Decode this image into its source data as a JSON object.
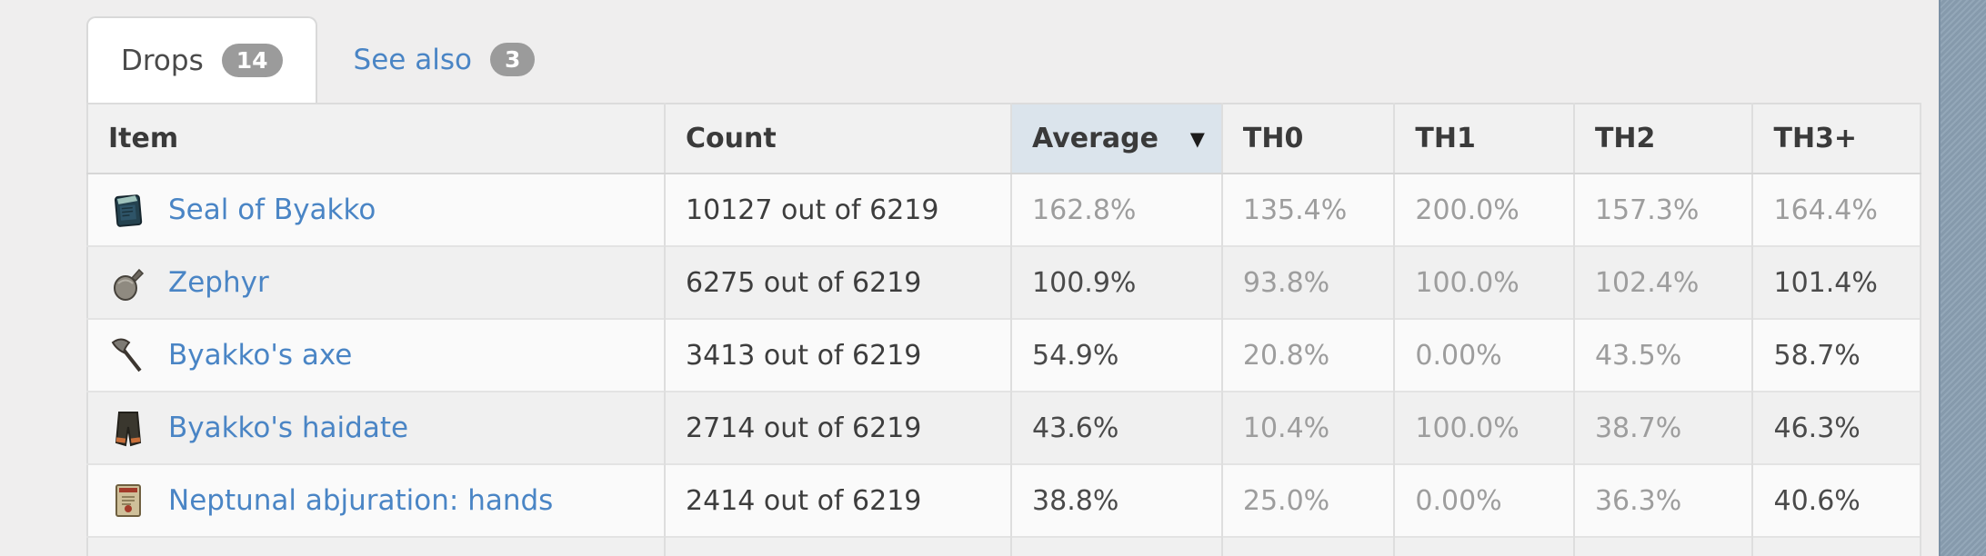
{
  "tabs": [
    {
      "label": "Drops",
      "badge": "14",
      "active": true
    },
    {
      "label": "See also",
      "badge": "3",
      "active": false
    }
  ],
  "sort_indicator": "▼",
  "table": {
    "columns": [
      {
        "key": "item",
        "label": "Item",
        "sorted": false
      },
      {
        "key": "count",
        "label": "Count",
        "sorted": false
      },
      {
        "key": "average",
        "label": "Average",
        "sorted": true
      },
      {
        "key": "th0",
        "label": "TH0",
        "sorted": false
      },
      {
        "key": "th1",
        "label": "TH1",
        "sorted": false
      },
      {
        "key": "th2",
        "label": "TH2",
        "sorted": false
      },
      {
        "key": "th3",
        "label": "TH3+",
        "sorted": false
      }
    ],
    "rows": [
      {
        "item": "Seal of Byakko",
        "icon": "seal-card-icon",
        "count": "10127 out of 6219",
        "average": {
          "text": "162.8%",
          "strong": false
        },
        "th0": {
          "text": "135.4%",
          "strong": false
        },
        "th1": {
          "text": "200.0%",
          "strong": false
        },
        "th2": {
          "text": "157.3%",
          "strong": false
        },
        "th3": {
          "text": "164.4%",
          "strong": false
        }
      },
      {
        "item": "Zephyr",
        "icon": "pouch-icon",
        "count": "6275 out of 6219",
        "average": {
          "text": "100.9%",
          "strong": true
        },
        "th0": {
          "text": "93.8%",
          "strong": false
        },
        "th1": {
          "text": "100.0%",
          "strong": false
        },
        "th2": {
          "text": "102.4%",
          "strong": false
        },
        "th3": {
          "text": "101.4%",
          "strong": true
        }
      },
      {
        "item": "Byakko's axe",
        "icon": "axe-icon",
        "count": "3413 out of 6219",
        "average": {
          "text": "54.9%",
          "strong": true
        },
        "th0": {
          "text": "20.8%",
          "strong": false
        },
        "th1": {
          "text": "0.00%",
          "strong": false
        },
        "th2": {
          "text": "43.5%",
          "strong": false
        },
        "th3": {
          "text": "58.7%",
          "strong": true
        }
      },
      {
        "item": "Byakko's haidate",
        "icon": "haidate-icon",
        "count": "2714 out of 6219",
        "average": {
          "text": "43.6%",
          "strong": true
        },
        "th0": {
          "text": "10.4%",
          "strong": false
        },
        "th1": {
          "text": "100.0%",
          "strong": false
        },
        "th2": {
          "text": "38.7%",
          "strong": false
        },
        "th3": {
          "text": "46.3%",
          "strong": true
        }
      },
      {
        "item": "Neptunal abjuration: hands",
        "icon": "scroll-icon",
        "count": "2414 out of 6219",
        "average": {
          "text": "38.8%",
          "strong": true
        },
        "th0": {
          "text": "25.0%",
          "strong": false
        },
        "th1": {
          "text": "0.00%",
          "strong": false
        },
        "th2": {
          "text": "36.3%",
          "strong": false
        },
        "th3": {
          "text": "40.6%",
          "strong": true
        }
      }
    ],
    "partial_next_row_visible": true
  },
  "colors": {
    "page_background": "#efeeee",
    "link_blue": "#4a85c5",
    "badge_gray": "#9b9b9b",
    "sorted_header_background": "#dbe4ec",
    "muted_value": "#9d9d9d",
    "strong_value": "#4a4a4a",
    "scrollbar_blue_gray": "#8ba0b3"
  }
}
